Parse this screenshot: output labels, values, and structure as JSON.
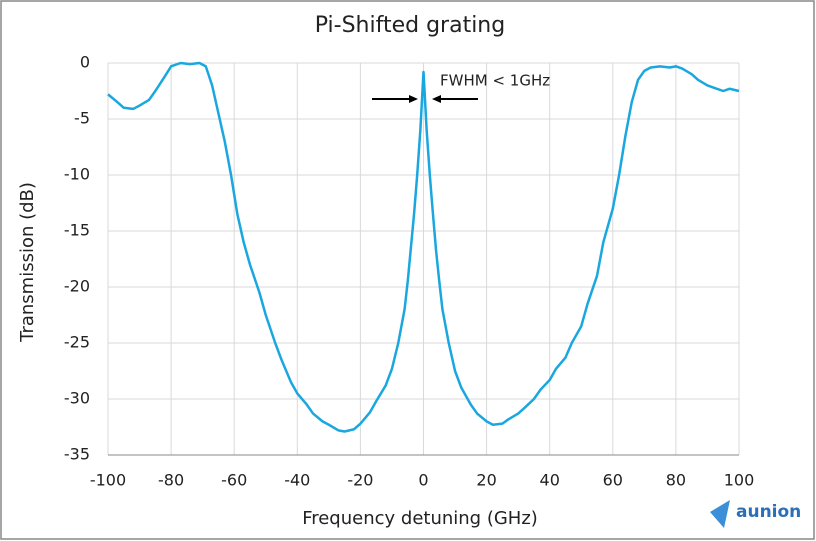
{
  "chart_data": {
    "type": "line",
    "title": "Pi-Shifted grating",
    "xlabel": "Frequency detuning (GHz)",
    "ylabel": "Transmission (dB)",
    "annotation": "FWHM < 1GHz",
    "watermark": "aunion",
    "xlim": [
      -100,
      100
    ],
    "xticks": [
      -100,
      -80,
      -60,
      -40,
      -20,
      0,
      20,
      40,
      60,
      80,
      100
    ],
    "ylim": [
      -35,
      0
    ],
    "yticks": [
      0,
      -5,
      -10,
      -15,
      -20,
      -25,
      -30,
      -35
    ],
    "grid": true,
    "x": [
      -100,
      -97,
      -95,
      -92,
      -90,
      -87,
      -85,
      -82,
      -80,
      -77,
      -74,
      -71,
      -69,
      -67,
      -65,
      -63,
      -61,
      -59,
      -57,
      -55,
      -52,
      -50,
      -47,
      -45,
      -42,
      -40,
      -37,
      -35,
      -32,
      -30,
      -27,
      -25,
      -22,
      -20,
      -17,
      -15,
      -12,
      -10,
      -8,
      -6,
      -5,
      -4,
      -3,
      -2,
      -1,
      0,
      1,
      2,
      3,
      4,
      5,
      6,
      8,
      10,
      12,
      15,
      17,
      20,
      22,
      25,
      27,
      30,
      32,
      35,
      37,
      40,
      42,
      45,
      47,
      50,
      52,
      55,
      57,
      60,
      62,
      64,
      66,
      68,
      70,
      72,
      75,
      78,
      80,
      82,
      85,
      87,
      90,
      92,
      95,
      97,
      100
    ],
    "series": [
      {
        "name": "Transmission",
        "color": "#1aa7e0",
        "values": [
          -2.8,
          -3.5,
          -4,
          -4.1,
          -3.8,
          -3.3,
          -2.5,
          -1.2,
          -0.3,
          0,
          -0.1,
          0,
          -0.3,
          -2,
          -4.5,
          -7,
          -10,
          -13.5,
          -16,
          -18,
          -20.5,
          -22.5,
          -25,
          -26.5,
          -28.5,
          -29.5,
          -30.5,
          -31.3,
          -32,
          -32.3,
          -32.8,
          -32.9,
          -32.7,
          -32.2,
          -31.2,
          -30.2,
          -28.8,
          -27.3,
          -25,
          -22,
          -19.5,
          -16.5,
          -13.5,
          -10,
          -6,
          -0.8,
          -6,
          -10,
          -13.5,
          -16.8,
          -19.5,
          -22,
          -25,
          -27.5,
          -29,
          -30.5,
          -31.3,
          -32,
          -32.3,
          -32.2,
          -31.8,
          -31.3,
          -30.8,
          -30,
          -29.2,
          -28.3,
          -27.3,
          -26.3,
          -25,
          -23.5,
          -21.5,
          -19,
          -16,
          -13,
          -10,
          -6.5,
          -3.5,
          -1.5,
          -0.7,
          -0.4,
          -0.3,
          -0.4,
          -0.3,
          -0.5,
          -1,
          -1.5,
          -2,
          -2.2,
          -2.5,
          -2.3,
          -2.5
        ]
      }
    ]
  }
}
